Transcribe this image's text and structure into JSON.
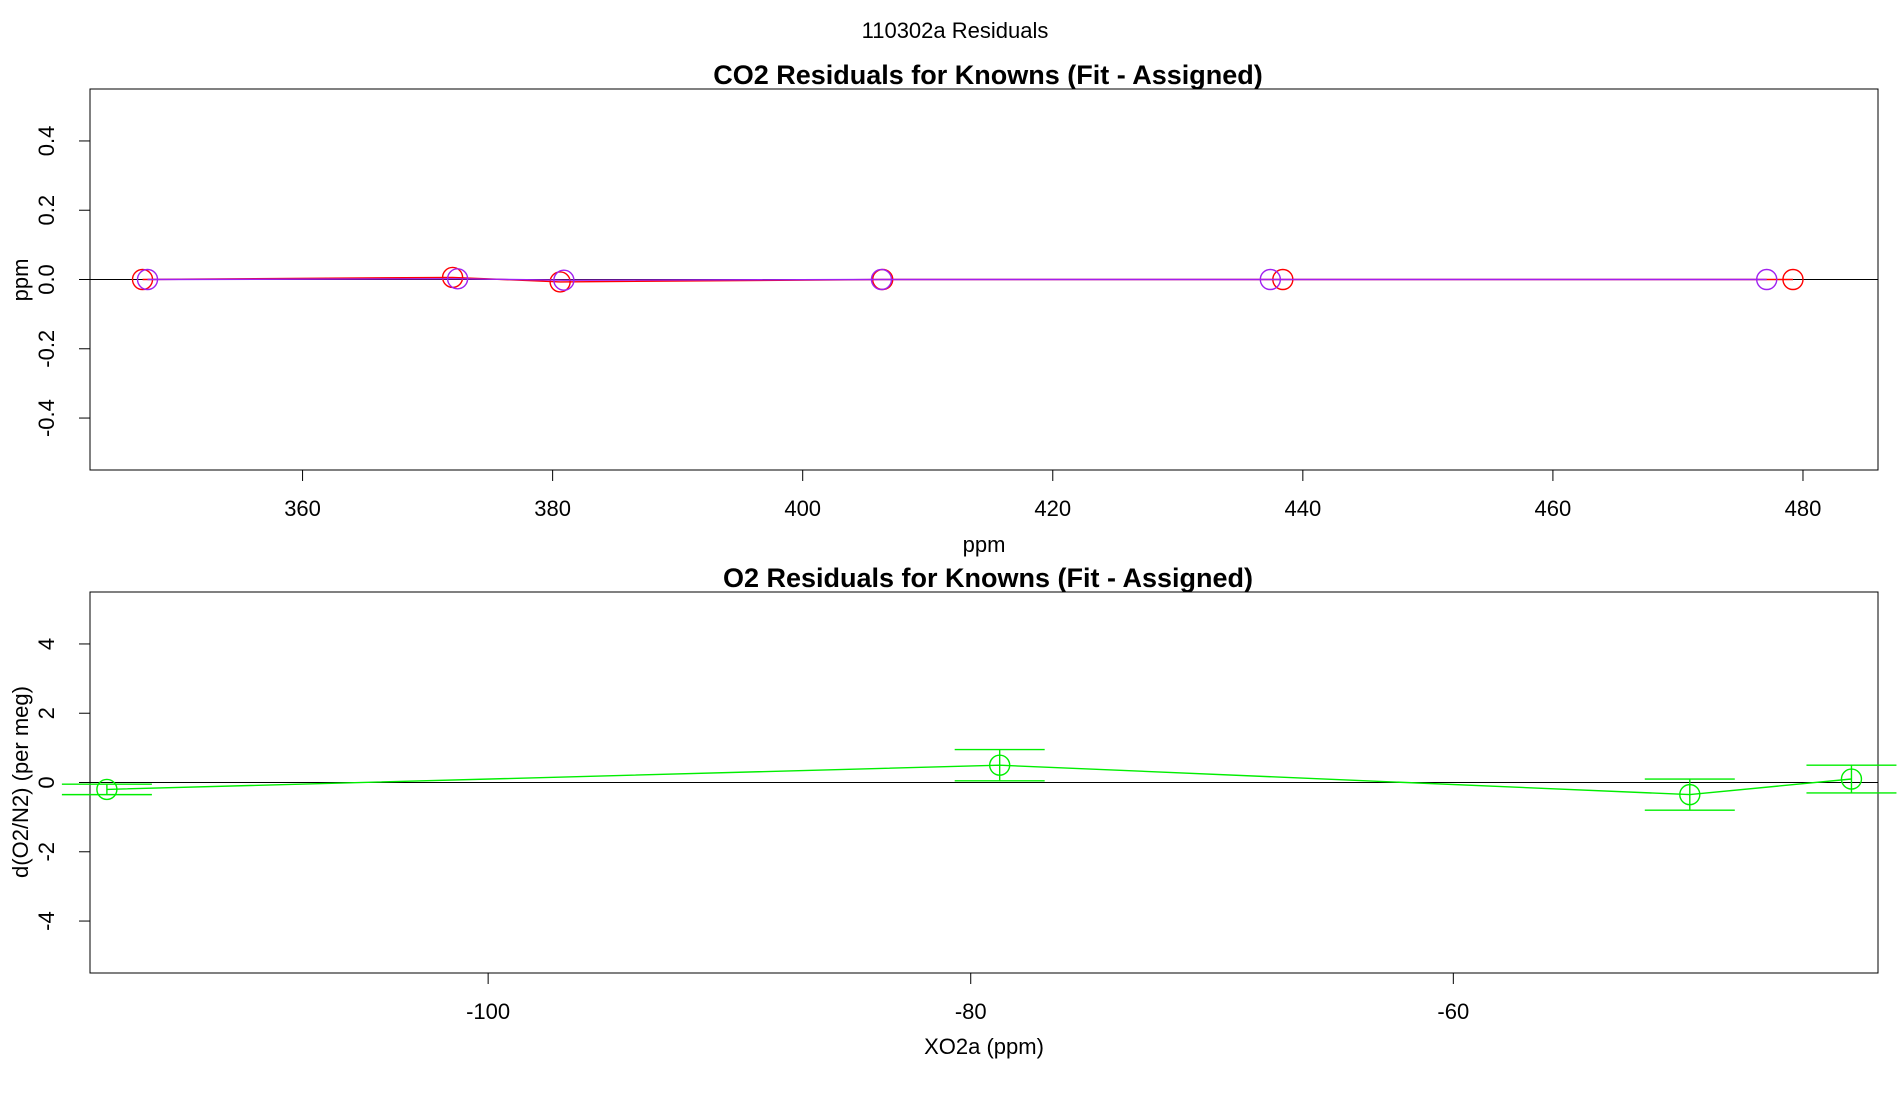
{
  "figure": {
    "title": "110302a  Residuals"
  },
  "colors": {
    "series_red": "#ff0000",
    "series_magenta": "#a020f0",
    "series_green": "#00ee00",
    "zero_line": "#000000",
    "frame": "#000000"
  },
  "chart_data": [
    {
      "type": "line",
      "title": "CO2 Residuals for Knowns (Fit - Assigned)",
      "xlabel": "ppm",
      "ylabel": "ppm",
      "xlim": [
        343,
        486
      ],
      "ylim": [
        -0.55,
        0.55
      ],
      "xticks": [
        360,
        380,
        400,
        420,
        440,
        460,
        480
      ],
      "yticks": [
        -0.4,
        -0.2,
        0.0,
        0.2,
        0.4
      ],
      "ytick_labels": [
        "-0.4",
        "-0.2",
        "0.0",
        "0.2",
        "0.4"
      ],
      "grid": false,
      "zero_line": true,
      "markers": "open-circle",
      "series": [
        {
          "color": "#ff0000",
          "points": [
            {
              "x": 347.2,
              "y": 0.0
            },
            {
              "x": 372.0,
              "y": 0.006
            },
            {
              "x": 380.6,
              "y": -0.007
            },
            {
              "x": 406.4,
              "y": 0.0
            },
            {
              "x": 438.4,
              "y": 0.0
            },
            {
              "x": 479.2,
              "y": 0.0
            }
          ]
        },
        {
          "color": "#a020f0",
          "points": [
            {
              "x": 347.6,
              "y": 0.0
            },
            {
              "x": 372.4,
              "y": 0.002
            },
            {
              "x": 380.9,
              "y": -0.002
            },
            {
              "x": 406.3,
              "y": 0.0
            },
            {
              "x": 437.4,
              "y": 0.0
            },
            {
              "x": 477.1,
              "y": 0.0
            }
          ]
        }
      ]
    },
    {
      "type": "line",
      "title": "O2 Residuals for Knowns (Fit - Assigned)",
      "xlabel": "XO2a (ppm)",
      "ylabel": "d(O2/N2) (per meg)",
      "xlim": [
        -116.5,
        -42.4
      ],
      "ylim": [
        -5.5,
        5.5
      ],
      "xticks": [
        -100,
        -80,
        -60
      ],
      "yticks": [
        -4,
        -2,
        0,
        2,
        4
      ],
      "ytick_labels": [
        "-4",
        "-2",
        "0",
        "2",
        "4"
      ],
      "grid": false,
      "zero_line": true,
      "markers": "open-circle",
      "error_bars": true,
      "series": [
        {
          "color": "#00ee00",
          "points": [
            {
              "x": -115.8,
              "y": -0.2,
              "ylow": -0.35,
              "yhigh": -0.05
            },
            {
              "x": -78.8,
              "y": 0.5,
              "ylow": 0.05,
              "yhigh": 0.95
            },
            {
              "x": -50.2,
              "y": -0.35,
              "ylow": -0.8,
              "yhigh": 0.1
            },
            {
              "x": -43.5,
              "y": 0.1,
              "ylow": -0.3,
              "yhigh": 0.5
            }
          ]
        }
      ]
    }
  ]
}
